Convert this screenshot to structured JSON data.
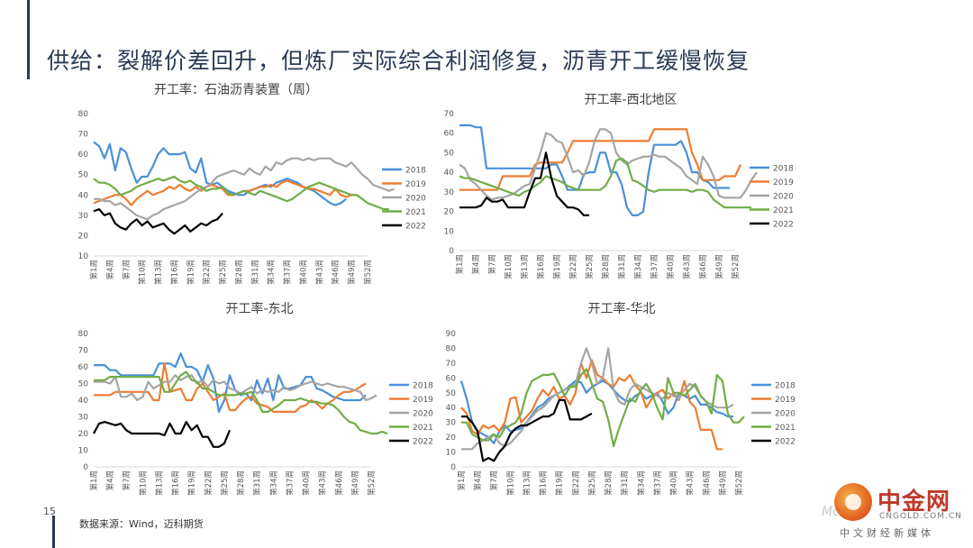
{
  "slide": {
    "title": "供给：裂解价差回升，但炼厂实际综合利润修复，沥青开工缓慢恢复",
    "page_number": "15",
    "source": "数据来源：Wind，迈科期货"
  },
  "logo": {
    "name": "中金网",
    "url": "CNGOLD.COM.CN",
    "tagline": "中文财经新媒体",
    "watermark": "Mc"
  },
  "colors": {
    "2018": "#4a90d9",
    "2019": "#ed7d31",
    "2020": "#a5a5a5",
    "2021": "#70ad47",
    "2022": "#000000",
    "title_bar": "#2b3a55"
  },
  "chart_data": [
    {
      "type": "line",
      "title": "开工率：石油沥青装置（周）",
      "ylim": [
        10,
        80
      ],
      "yticks": [
        10,
        20,
        30,
        40,
        50,
        60,
        70,
        80
      ],
      "xticks": [
        "第1周",
        "第4周",
        "第7周",
        "第10周",
        "第13周",
        "第16周",
        "第19周",
        "第22周",
        "第25周",
        "第28周",
        "第31周",
        "第34周",
        "第37周",
        "第40周",
        "第43周",
        "第46周",
        "第49周",
        "第52周"
      ],
      "legend_position": "right",
      "series": [
        {
          "name": "2018",
          "values": [
            66,
            64,
            58,
            65,
            52,
            63,
            61,
            53,
            46,
            49,
            49,
            54,
            60,
            63,
            60,
            60,
            60,
            61,
            53,
            51,
            58,
            46,
            45,
            46,
            44,
            42,
            41,
            40,
            40,
            42,
            43,
            44,
            45,
            44,
            46,
            47,
            48,
            47,
            46,
            44,
            43,
            42,
            40,
            38,
            36,
            35,
            36,
            38
          ]
        },
        {
          "name": "2019",
          "values": [
            36,
            37,
            38,
            39,
            40,
            40,
            38,
            35,
            38,
            40,
            42,
            40,
            41,
            42,
            44,
            43,
            45,
            43,
            42,
            44,
            42,
            44,
            45,
            44,
            43,
            40,
            40,
            41,
            42,
            42,
            43,
            44,
            44,
            45,
            44,
            46,
            47,
            46,
            45,
            44,
            43,
            43,
            42,
            41,
            40,
            43,
            40,
            39,
            40,
            40
          ]
        },
        {
          "name": "2020",
          "values": [
            38,
            38,
            37,
            37,
            35,
            36,
            34,
            32,
            30,
            29,
            28,
            30,
            31,
            33,
            34,
            35,
            36,
            37,
            39,
            41,
            43,
            44,
            46,
            49,
            50,
            51,
            52,
            51,
            50,
            53,
            51,
            50,
            54,
            52,
            56,
            55,
            57,
            58,
            58,
            57,
            58,
            57,
            58,
            58,
            58,
            56,
            55,
            54,
            56,
            53,
            50,
            48,
            45,
            44,
            43,
            42,
            43
          ]
        },
        {
          "name": "2021",
          "values": [
            48,
            46,
            46,
            45,
            43,
            40,
            41,
            42,
            44,
            45,
            46,
            47,
            48,
            47,
            48,
            49,
            47,
            46,
            47,
            45,
            44,
            42,
            43,
            43,
            44,
            41,
            40,
            41,
            42,
            41,
            40,
            42,
            41,
            40,
            39,
            38,
            37,
            38,
            40,
            42,
            44,
            45,
            46,
            45,
            44,
            43,
            42,
            41,
            40,
            40,
            38,
            36,
            35,
            34,
            33,
            33
          ]
        },
        {
          "name": "2022",
          "values": [
            32,
            33,
            30,
            31,
            26,
            24,
            23,
            26,
            28,
            25,
            27,
            24,
            25,
            26,
            23,
            21,
            23,
            25,
            22,
            24,
            26,
            25,
            27,
            28,
            31
          ]
        }
      ]
    },
    {
      "type": "line",
      "title": "开工率-西北地区",
      "ylim": [
        0,
        70
      ],
      "yticks": [
        0,
        10,
        20,
        30,
        40,
        50,
        60,
        70
      ],
      "xticks": [
        "第1周",
        "第4周",
        "第7周",
        "第10周",
        "第13周",
        "第16周",
        "第19周",
        "第22周",
        "第25周",
        "第28周",
        "第31周",
        "第34周",
        "第37周",
        "第40周",
        "第43周",
        "第46周",
        "第49周",
        "第52周"
      ],
      "legend_position": "right",
      "series": [
        {
          "name": "2018",
          "values": [
            64,
            64,
            64,
            63,
            63,
            42,
            42,
            42,
            42,
            42,
            42,
            42,
            42,
            42,
            42,
            42,
            42,
            44,
            44,
            38,
            31,
            31,
            31,
            39,
            40,
            40,
            50,
            50,
            40,
            40,
            34,
            22,
            18,
            18,
            20,
            40,
            54,
            54,
            54,
            54,
            54,
            56,
            50,
            40,
            40,
            36,
            35,
            32,
            32,
            32,
            32
          ]
        },
        {
          "name": "2019",
          "values": [
            31,
            31,
            31,
            31,
            31,
            31,
            31,
            31,
            38,
            38,
            38,
            38,
            38,
            38,
            44,
            45,
            45,
            45,
            45,
            45,
            50,
            56,
            56,
            56,
            56,
            56,
            56,
            56,
            56,
            56,
            56,
            56,
            56,
            56,
            56,
            56,
            62,
            62,
            62,
            62,
            62,
            62,
            62,
            50,
            44,
            36,
            36,
            36,
            36,
            38,
            38,
            38,
            44
          ]
        },
        {
          "name": "2020",
          "values": [
            44,
            42,
            36,
            34,
            31,
            28,
            26,
            27,
            27,
            28,
            29,
            31,
            33,
            34,
            42,
            50,
            60,
            59,
            56,
            55,
            48,
            40,
            41,
            38,
            45,
            56,
            62,
            62,
            60,
            50,
            46,
            44,
            46,
            47,
            48,
            48,
            49,
            48,
            48,
            46,
            44,
            42,
            38,
            36,
            34,
            48,
            44,
            38,
            28,
            27,
            27,
            27,
            27,
            31,
            36,
            40
          ]
        },
        {
          "name": "2021",
          "values": [
            38,
            37,
            37,
            36,
            35,
            34,
            33,
            32,
            31,
            30,
            29,
            28,
            30,
            31,
            33,
            35,
            38,
            37,
            36,
            35,
            33,
            32,
            31,
            31,
            31,
            31,
            31,
            33,
            38,
            46,
            47,
            45,
            36,
            35,
            33,
            31,
            30,
            31,
            31,
            31,
            31,
            31,
            31,
            30,
            31,
            31,
            30,
            26,
            24,
            22,
            22,
            22,
            22,
            22,
            22
          ]
        },
        {
          "name": "2022",
          "values": [
            22,
            22,
            22,
            22,
            23,
            27,
            25,
            25,
            26,
            22,
            22,
            22,
            22,
            30,
            37,
            37,
            50,
            37,
            28,
            25,
            22,
            22,
            21,
            18,
            18
          ]
        }
      ]
    },
    {
      "type": "line",
      "title": "开工率-东北",
      "ylim": [
        0,
        80
      ],
      "yticks": [
        0,
        10,
        20,
        30,
        40,
        50,
        60,
        70,
        80
      ],
      "xticks": [
        "第1周",
        "第4周",
        "第7周",
        "第10周",
        "第13周",
        "第16周",
        "第19周",
        "第22周",
        "第25周",
        "第28周",
        "第31周",
        "第34周",
        "第37周",
        "第40周",
        "第43周",
        "第46周",
        "第49周",
        "第52周"
      ],
      "legend_position": "right",
      "series": [
        {
          "name": "2018",
          "values": [
            61,
            61,
            61,
            58,
            58,
            55,
            55,
            55,
            55,
            55,
            55,
            55,
            62,
            62,
            62,
            60,
            68,
            60,
            60,
            58,
            51,
            61,
            53,
            33,
            40,
            55,
            46,
            43,
            44,
            40,
            52,
            44,
            53,
            40,
            55,
            47,
            47,
            48,
            49,
            54,
            54,
            47,
            46,
            44,
            42,
            41,
            40,
            40,
            40,
            40,
            43
          ]
        },
        {
          "name": "2019",
          "values": [
            43,
            43,
            43,
            43,
            45,
            45,
            45,
            45,
            45,
            45,
            45,
            40,
            40,
            62,
            45,
            46,
            47,
            40,
            40,
            47,
            50,
            45,
            40,
            42,
            44,
            34,
            34,
            38,
            41,
            42,
            38,
            37,
            36,
            33,
            33,
            33,
            33,
            33,
            36,
            37,
            40,
            38,
            35,
            38,
            40,
            43,
            45,
            45,
            46,
            48,
            50
          ]
        },
        {
          "name": "2020",
          "values": [
            51,
            51,
            51,
            50,
            54,
            42,
            42,
            44,
            40,
            42,
            51,
            47,
            49,
            51,
            51,
            55,
            52,
            54,
            55,
            50,
            52,
            48,
            52,
            50,
            51,
            47,
            46,
            44,
            46,
            48,
            44,
            46,
            45,
            46,
            45,
            48,
            46,
            47,
            49,
            50,
            51,
            50,
            49,
            50,
            49,
            48,
            48,
            47,
            46,
            45,
            40,
            41,
            43
          ]
        },
        {
          "name": "2021",
          "values": [
            52,
            52,
            52,
            54,
            54,
            54,
            54,
            54,
            54,
            54,
            54,
            54,
            54,
            45,
            45,
            50,
            55,
            57,
            52,
            51,
            47,
            47,
            45,
            43,
            43,
            43,
            43,
            44,
            44,
            45,
            40,
            33,
            33,
            35,
            37,
            40,
            40,
            40,
            41,
            40,
            39,
            39,
            38,
            38,
            37,
            34,
            30,
            27,
            26,
            22,
            21,
            20,
            20,
            21,
            20
          ]
        },
        {
          "name": "2022",
          "values": [
            20,
            26,
            27,
            26,
            25,
            26,
            22,
            20,
            20,
            20,
            20,
            20,
            20,
            19,
            26,
            20,
            20,
            27,
            22,
            25,
            18,
            18,
            12,
            12,
            14,
            22
          ]
        }
      ]
    },
    {
      "type": "line",
      "title": "开工率-华北",
      "ylim": [
        0,
        90
      ],
      "yticks": [
        0,
        10,
        20,
        30,
        40,
        50,
        60,
        70,
        80,
        90
      ],
      "xticks": [
        "第1周",
        "第4周",
        "第7周",
        "第10周",
        "第13周",
        "第16周",
        "第19周",
        "第22周",
        "第25周",
        "第28周",
        "第31周",
        "第34周",
        "第37周",
        "第40周",
        "第43周",
        "第46周",
        "第49周",
        "第52周"
      ],
      "legend_position": "right",
      "series": [
        {
          "name": "2018",
          "values": [
            58,
            46,
            30,
            24,
            22,
            20,
            16,
            24,
            28,
            24,
            25,
            26,
            30,
            35,
            40,
            42,
            46,
            48,
            50,
            52,
            55,
            58,
            57,
            50,
            54,
            56,
            58,
            56,
            52,
            48,
            45,
            44,
            48,
            50,
            46,
            48,
            50,
            44,
            36,
            40,
            50,
            48,
            46,
            48,
            42,
            42,
            40,
            37,
            36,
            34,
            34
          ]
        },
        {
          "name": "2019",
          "values": [
            40,
            36,
            24,
            22,
            28,
            26,
            28,
            24,
            30,
            46,
            47,
            30,
            34,
            38,
            46,
            52,
            48,
            54,
            46,
            48,
            42,
            50,
            70,
            60,
            72,
            62,
            60,
            56,
            54,
            60,
            58,
            62,
            55,
            51,
            40,
            46,
            50,
            52,
            46,
            50,
            45,
            58,
            44,
            40,
            25,
            25,
            25,
            12,
            12
          ]
        },
        {
          "name": "2020",
          "values": [
            12,
            12,
            12,
            16,
            18,
            20,
            22,
            16,
            14,
            16,
            20,
            24,
            30,
            34,
            38,
            40,
            44,
            48,
            50,
            52,
            54,
            56,
            70,
            80,
            70,
            56,
            60,
            80,
            52,
            44,
            42,
            52,
            56,
            54,
            52,
            50,
            48,
            46,
            50,
            48,
            46,
            52,
            56,
            54,
            48,
            44,
            42,
            40,
            40,
            40,
            42
          ]
        },
        {
          "name": "2021",
          "values": [
            30,
            30,
            22,
            20,
            18,
            18,
            22,
            20,
            26,
            28,
            30,
            36,
            50,
            58,
            60,
            62,
            62,
            63,
            56,
            48,
            54,
            54,
            62,
            66,
            56,
            46,
            44,
            32,
            14,
            26,
            36,
            46,
            44,
            52,
            56,
            50,
            40,
            32,
            60,
            50,
            50,
            48,
            52,
            56,
            48,
            44,
            36,
            62,
            58,
            36,
            30,
            30,
            34
          ]
        },
        {
          "name": "2022",
          "values": [
            34,
            34,
            30,
            24,
            4,
            6,
            4,
            10,
            14,
            22,
            26,
            28,
            28,
            30,
            32,
            34,
            34,
            36,
            45,
            45,
            32,
            32,
            32,
            34,
            36
          ]
        }
      ]
    }
  ]
}
